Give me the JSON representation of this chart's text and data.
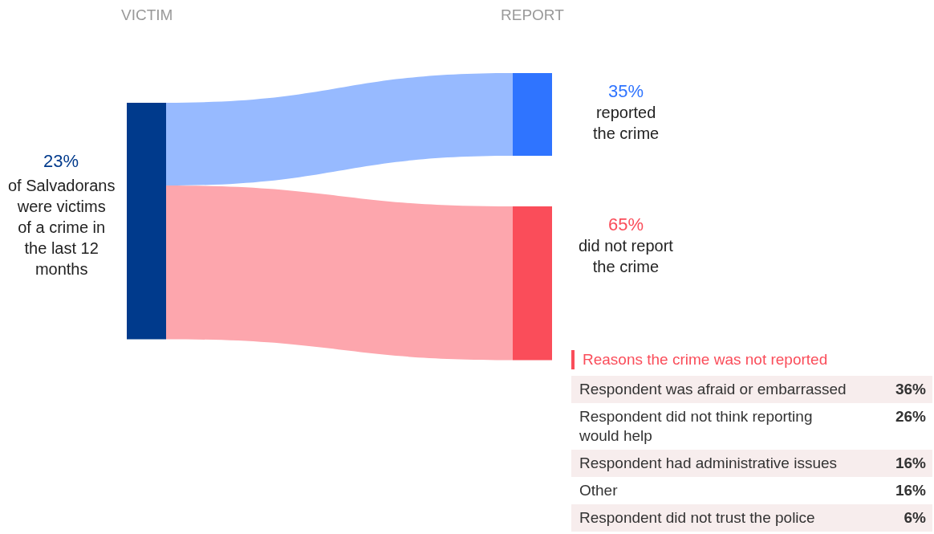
{
  "chart_data": [
    {
      "type": "other",
      "annotations": [
        "VICTIM",
        "REPORT"
      ],
      "categories": [
        "of Salvadorans were victims of a crime in the last 12 months",
        "reported the crime",
        "did not report the crime"
      ],
      "values": [
        23,
        35,
        65
      ],
      "value_labels": [
        "23%",
        "35%",
        "65%"
      ],
      "colors": [
        "#003a8c",
        "#2f74ff",
        "#fa4d5a"
      ]
    },
    {
      "type": "other",
      "title": "Reasons the crime was not reported",
      "categories": [
        "Respondent was afraid or embarrassed",
        "Respondent did not think reporting would help",
        "Respondent had administrative issues",
        "Other",
        "Respondent did not trust the police"
      ],
      "values": [
        36,
        26,
        16,
        16,
        6
      ],
      "value_labels": [
        "36%",
        "26%",
        "16%",
        "16%",
        "6%"
      ]
    }
  ]
}
